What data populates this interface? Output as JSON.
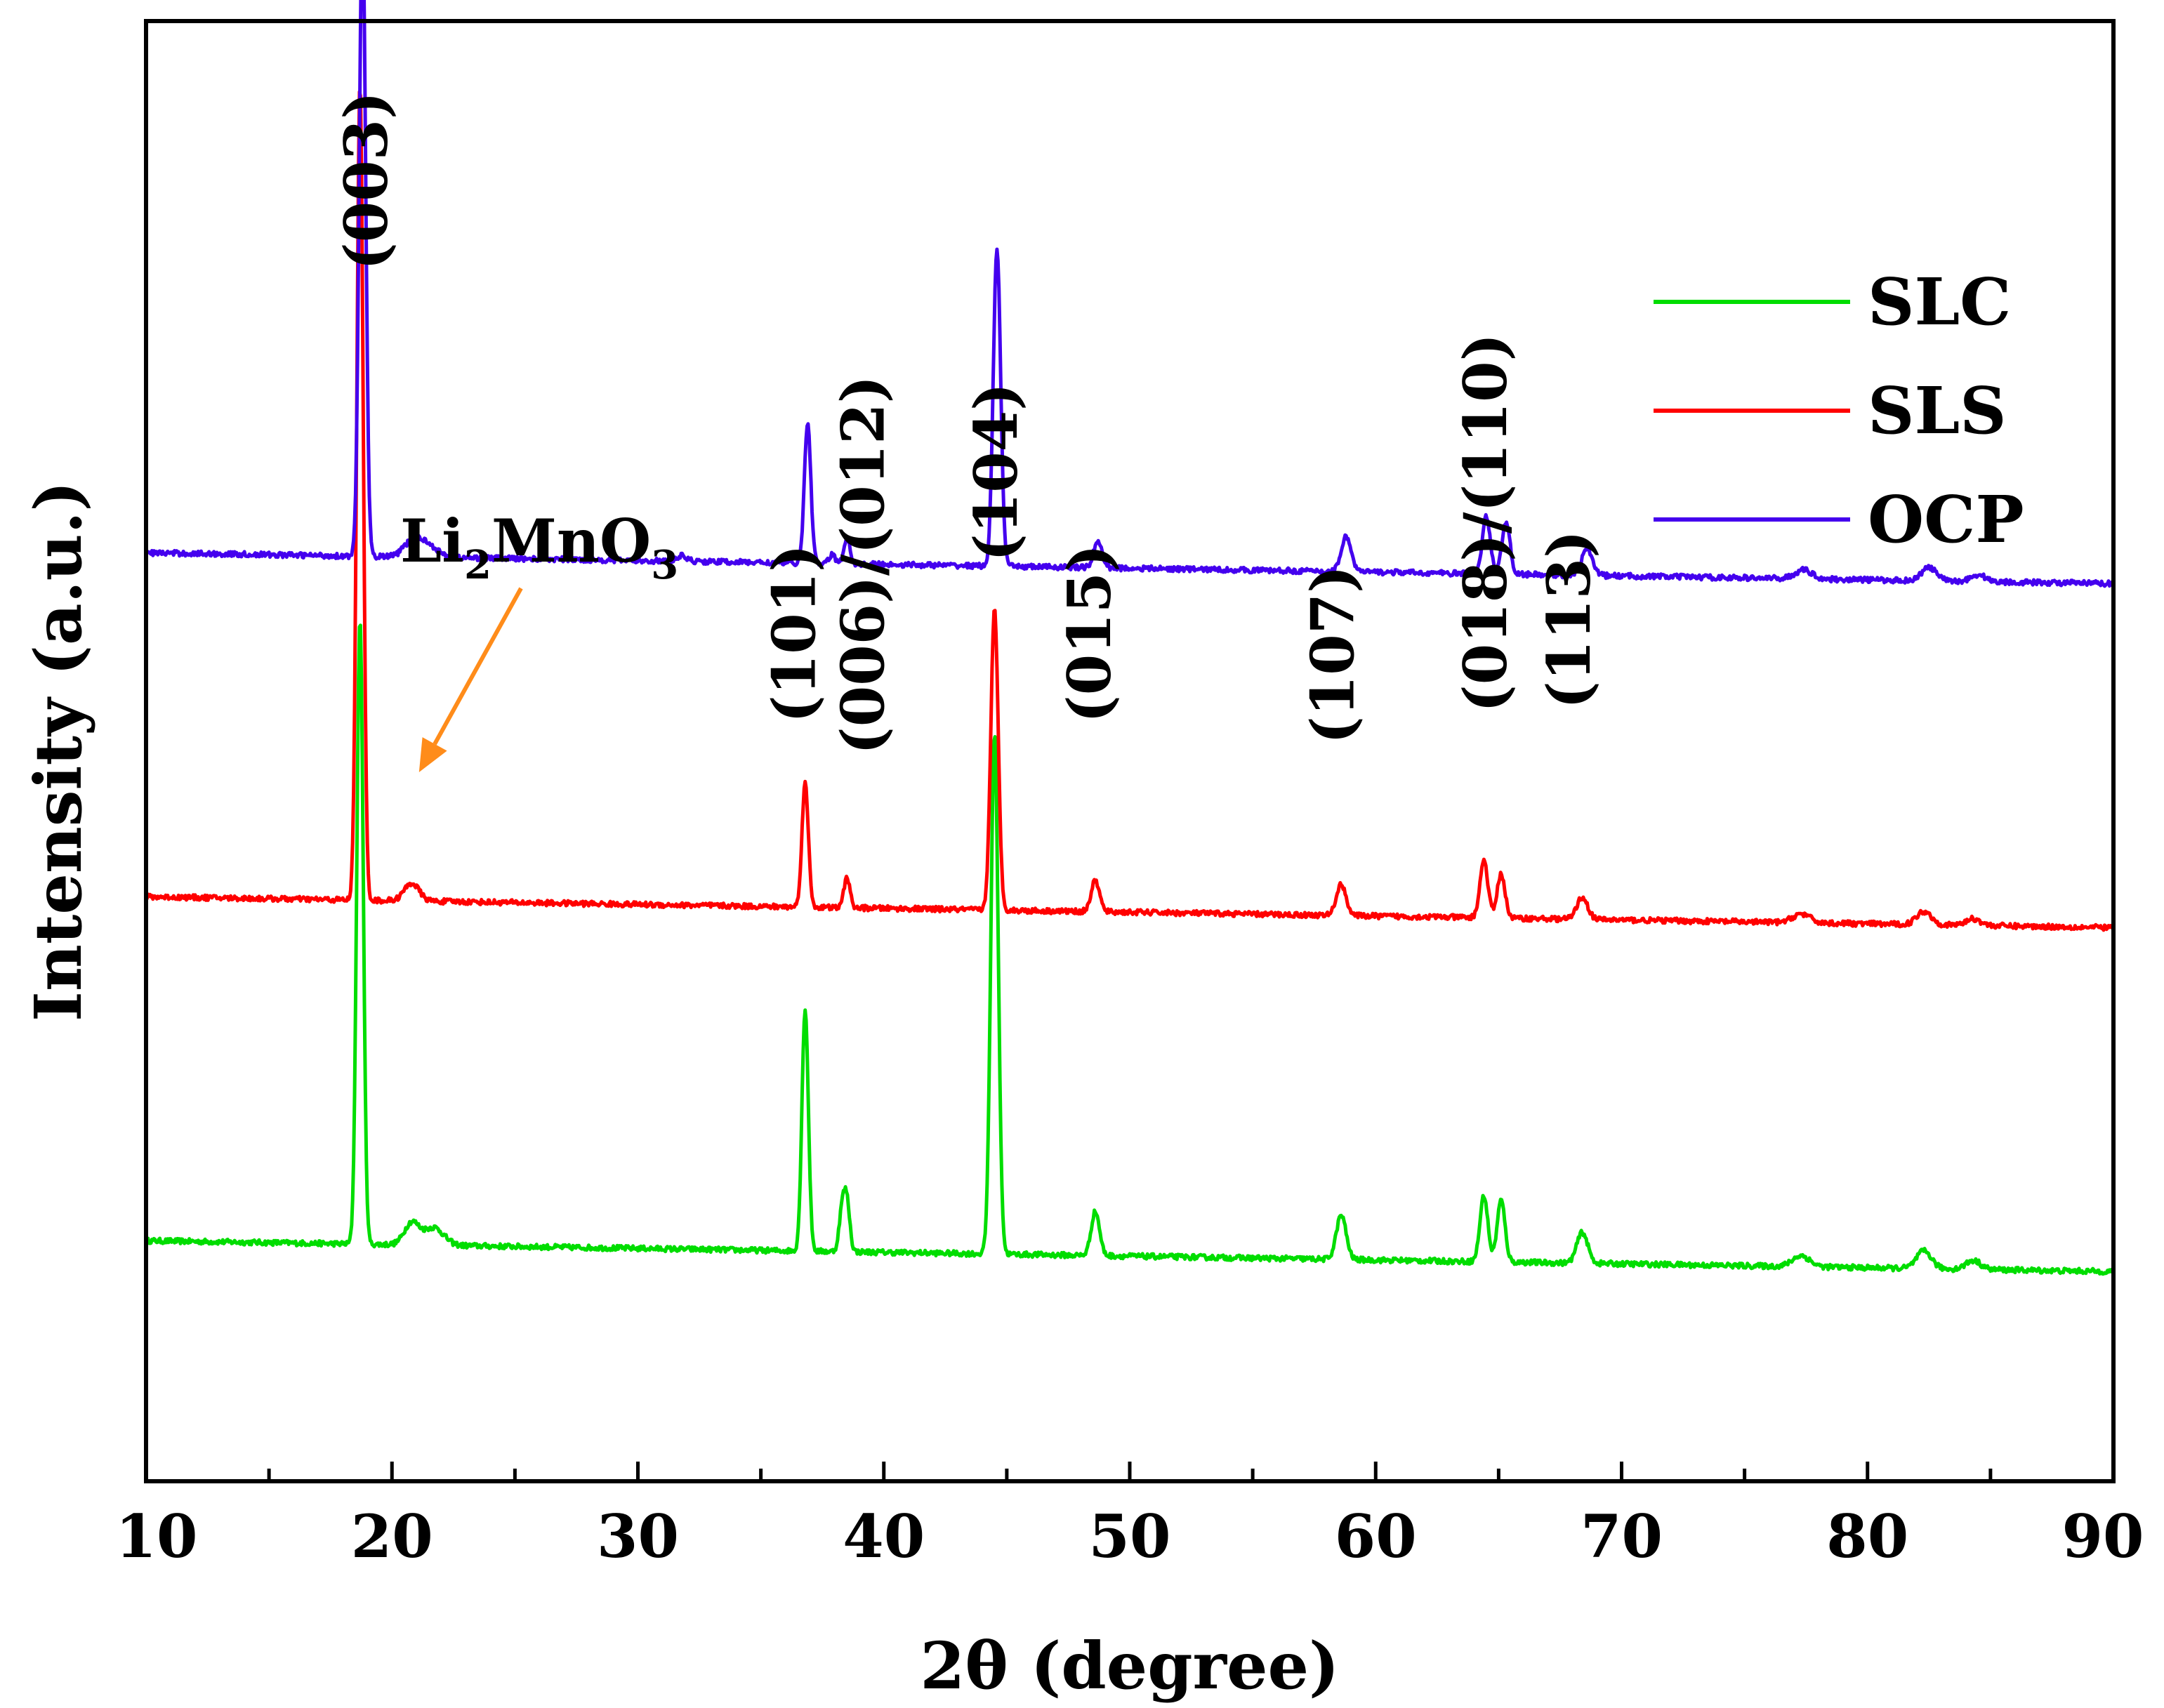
{
  "chart_data": {
    "type": "line",
    "title": "",
    "xlabel": "2θ (degree)",
    "ylabel": "Intensity (a.u.)",
    "xlim": [
      10,
      90
    ],
    "ylim": [
      0,
      3.2
    ],
    "x_ticks": [
      10,
      20,
      30,
      40,
      50,
      60,
      70,
      80,
      90
    ],
    "x_tick_labels": [
      "10",
      "20",
      "30",
      "40",
      "50",
      "60",
      "70",
      "80",
      "90"
    ],
    "y_ticks": [],
    "grid": false,
    "legend_position": "top-right",
    "baseline_start": 0.45,
    "baseline_end": 0.38,
    "series": [
      {
        "name": "SLC",
        "color": "#00dd00",
        "offset": 0.0,
        "peaks": [
          {
            "x": 18.7,
            "h": 1.42,
            "w": 0.13
          },
          {
            "x": 20.8,
            "h": 0.05,
            "w": 0.3
          },
          {
            "x": 21.7,
            "h": 0.04,
            "w": 0.4
          },
          {
            "x": 36.8,
            "h": 0.55,
            "w": 0.13
          },
          {
            "x": 38.3,
            "h": 0.09,
            "w": 0.12
          },
          {
            "x": 38.5,
            "h": 0.11,
            "w": 0.12
          },
          {
            "x": 44.5,
            "h": 1.18,
            "w": 0.15
          },
          {
            "x": 48.6,
            "h": 0.1,
            "w": 0.17
          },
          {
            "x": 58.6,
            "h": 0.1,
            "w": 0.2
          },
          {
            "x": 64.4,
            "h": 0.15,
            "w": 0.16
          },
          {
            "x": 65.1,
            "h": 0.14,
            "w": 0.16
          },
          {
            "x": 68.4,
            "h": 0.07,
            "w": 0.22
          },
          {
            "x": 77.3,
            "h": 0.025,
            "w": 0.35
          },
          {
            "x": 82.3,
            "h": 0.04,
            "w": 0.3
          },
          {
            "x": 84.3,
            "h": 0.02,
            "w": 0.3
          }
        ]
      },
      {
        "name": "SLS",
        "color": "#ff0000",
        "offset": 0.78,
        "peaks": [
          {
            "x": 18.7,
            "h": 1.85,
            "w": 0.13
          },
          {
            "x": 20.8,
            "h": 0.04,
            "w": 0.3
          },
          {
            "x": 36.8,
            "h": 0.28,
            "w": 0.13
          },
          {
            "x": 38.5,
            "h": 0.07,
            "w": 0.12
          },
          {
            "x": 44.5,
            "h": 0.68,
            "w": 0.15
          },
          {
            "x": 48.6,
            "h": 0.07,
            "w": 0.17
          },
          {
            "x": 58.6,
            "h": 0.07,
            "w": 0.2
          },
          {
            "x": 64.4,
            "h": 0.13,
            "w": 0.16
          },
          {
            "x": 65.1,
            "h": 0.1,
            "w": 0.16
          },
          {
            "x": 68.4,
            "h": 0.05,
            "w": 0.22
          },
          {
            "x": 77.3,
            "h": 0.02,
            "w": 0.35
          },
          {
            "x": 82.3,
            "h": 0.03,
            "w": 0.3
          },
          {
            "x": 84.3,
            "h": 0.015,
            "w": 0.3
          }
        ]
      },
      {
        "name": "OCP",
        "color": "#4400ee",
        "offset": 1.56,
        "peaks": [
          {
            "x": 18.8,
            "h": 1.45,
            "w": 0.13
          },
          {
            "x": 20.8,
            "h": 0.03,
            "w": 0.35
          },
          {
            "x": 21.4,
            "h": 0.03,
            "w": 0.4
          },
          {
            "x": 31.8,
            "h": 0.012,
            "w": 0.2
          },
          {
            "x": 36.9,
            "h": 0.32,
            "w": 0.13
          },
          {
            "x": 37.9,
            "h": 0.02,
            "w": 0.12
          },
          {
            "x": 38.5,
            "h": 0.06,
            "w": 0.12
          },
          {
            "x": 44.6,
            "h": 0.72,
            "w": 0.15
          },
          {
            "x": 48.7,
            "h": 0.06,
            "w": 0.17
          },
          {
            "x": 58.8,
            "h": 0.08,
            "w": 0.2
          },
          {
            "x": 64.5,
            "h": 0.13,
            "w": 0.16
          },
          {
            "x": 65.3,
            "h": 0.12,
            "w": 0.16
          },
          {
            "x": 68.6,
            "h": 0.06,
            "w": 0.22
          },
          {
            "x": 77.4,
            "h": 0.02,
            "w": 0.35
          },
          {
            "x": 82.5,
            "h": 0.03,
            "w": 0.3
          },
          {
            "x": 84.5,
            "h": 0.015,
            "w": 0.3
          }
        ]
      }
    ],
    "annotations": [
      {
        "text": "(003)",
        "x": 19.0
      },
      {
        "text": "(101)",
        "x": 36.4
      },
      {
        "text": "(006)/(012)",
        "x": 39.2
      },
      {
        "text": "(104)",
        "x": 44.6
      },
      {
        "text": "(015)",
        "x": 48.4
      },
      {
        "text": "(107)",
        "x": 58.3
      },
      {
        "text": "(018)/(110)",
        "x": 64.5
      },
      {
        "text": "(113)",
        "x": 67.9
      }
    ],
    "phase_label": {
      "base": "Li",
      "sub1": "2",
      "mid": "MnO",
      "sub2": "3",
      "arrow_color": "#ff8c1a",
      "arrow_target_x": 21.1
    }
  }
}
